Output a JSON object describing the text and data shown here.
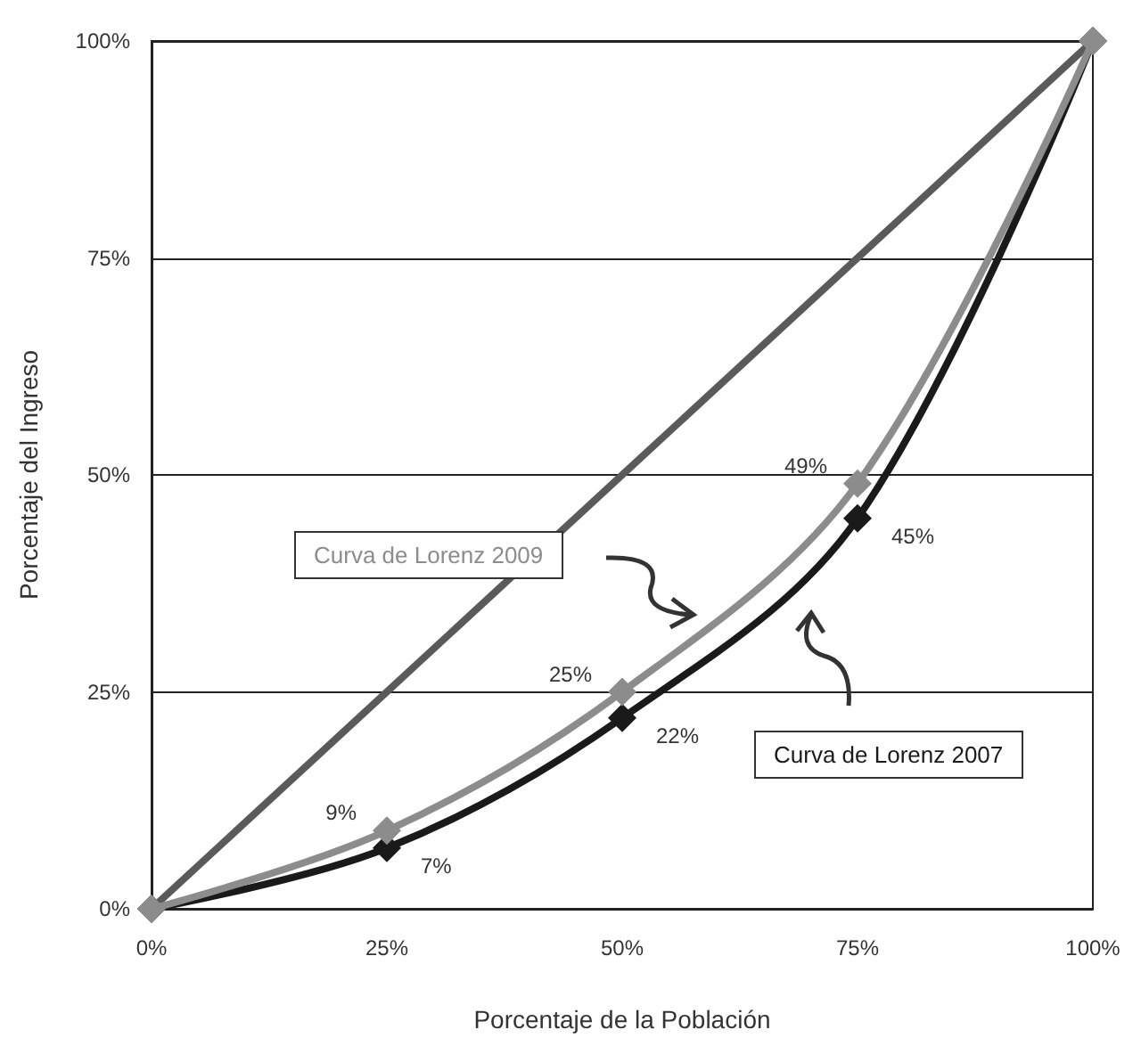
{
  "chart_data": {
    "type": "line",
    "xlabel": "Porcentaje de la Población",
    "ylabel": "Porcentaje del Ingreso",
    "x": [
      0,
      25,
      50,
      75,
      100
    ],
    "series": [
      {
        "color": "#5a5a5a",
        "values": [
          0,
          25,
          50,
          75,
          100
        ],
        "marker": "none"
      },
      {
        "name": "Curva de Lorenz 2009",
        "color": "#8c8c8c",
        "values": [
          0,
          9,
          25,
          49,
          100
        ],
        "value_labels": [
          null,
          "9%",
          "25%",
          "49%",
          null
        ]
      },
      {
        "name": "Curva de Lorenz 2007",
        "color": "#1a1a1a",
        "values": [
          0,
          7,
          22,
          45,
          100
        ],
        "value_labels": [
          null,
          "7%",
          "22%",
          "45%",
          null
        ]
      }
    ],
    "xlim": [
      0,
      100
    ],
    "ylim": [
      0,
      100
    ],
    "xticks": [
      {
        "value": 0,
        "label": "0%"
      },
      {
        "value": 25,
        "label": "25%"
      },
      {
        "value": 50,
        "label": "50%"
      },
      {
        "value": 75,
        "label": "75%"
      },
      {
        "value": 100,
        "label": "100%"
      }
    ],
    "yticks": [
      {
        "value": 0,
        "label": "0%"
      },
      {
        "value": 25,
        "label": "25%"
      },
      {
        "value": 50,
        "label": "50%"
      },
      {
        "value": 75,
        "label": "75%"
      },
      {
        "value": 100,
        "label": "100%"
      }
    ],
    "grid": "y",
    "legend": false,
    "marker": "diamond",
    "line_style": "solid"
  }
}
